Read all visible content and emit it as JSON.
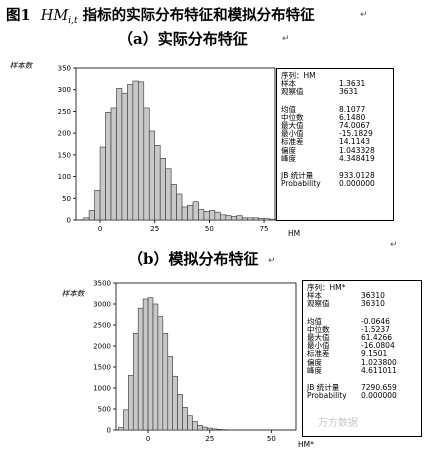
{
  "figure": {
    "title_prefix": "图1",
    "title_hm": "HM",
    "title_sub": "i,t",
    "title_rest": "指标的实际分布特征和模拟分布特征"
  },
  "watermark": "万方数据",
  "chart_data": [
    {
      "type": "bar",
      "subtitle": "（a）实际分布特征",
      "ylabel": "样本数",
      "xlabel": "HM",
      "x_ticks": [
        0,
        25,
        50,
        75
      ],
      "y_ticks": [
        0,
        50,
        100,
        150,
        200,
        250,
        300,
        350
      ],
      "ylim": [
        0,
        350
      ],
      "xlim": [
        -11,
        80
      ],
      "bin_width": 2.5,
      "bin_start": -7.5,
      "values": [
        5,
        22,
        68,
        168,
        248,
        258,
        303,
        292,
        312,
        320,
        318,
        258,
        205,
        172,
        142,
        118,
        82,
        60,
        30,
        34,
        42,
        24,
        20,
        22,
        18,
        12,
        10,
        8,
        10,
        5,
        5,
        5,
        4,
        3,
        2,
        2
      ],
      "stats": {
        "rows": [
          {
            "label": "序列：HM",
            "value": ""
          },
          {
            "label": "样本",
            "value": "1.3631"
          },
          {
            "label": "观察值",
            "value": "3631"
          },
          {
            "label": "",
            "value": ""
          },
          {
            "label": "均值",
            "value": "8.1077"
          },
          {
            "label": "中位数",
            "value": "6.1480"
          },
          {
            "label": "最大值",
            "value": "74.0067"
          },
          {
            "label": "最小值",
            "value": "-15.1829"
          },
          {
            "label": "标准差",
            "value": "14.1143"
          },
          {
            "label": "偏度",
            "value": "1.043328"
          },
          {
            "label": "峰度",
            "value": "4.348419"
          },
          {
            "label": "",
            "value": ""
          },
          {
            "label": "JB 统计量",
            "value": "933.0128"
          },
          {
            "label": "Probability",
            "value": "0.000000"
          }
        ]
      }
    },
    {
      "type": "bar",
      "subtitle": "（b）模拟分布特征",
      "ylabel": "样本数",
      "xlabel": "HM*",
      "x_ticks": [
        0,
        25,
        50
      ],
      "y_ticks": [
        0,
        500,
        1000,
        1500,
        2000,
        2500,
        3000,
        3500
      ],
      "ylim": [
        0,
        3500
      ],
      "xlim": [
        -13,
        60
      ],
      "bin_width": 2,
      "bin_start": -12,
      "values": [
        60,
        480,
        1300,
        2300,
        2900,
        3120,
        3150,
        3000,
        2700,
        2300,
        1750,
        1280,
        850,
        540,
        340,
        200,
        110,
        70,
        45,
        25,
        15,
        8,
        5,
        3,
        2,
        1
      ],
      "stats": {
        "rows": [
          {
            "label": "序列：HM*",
            "value": ""
          },
          {
            "label": "样本",
            "value": "36310"
          },
          {
            "label": "观察值",
            "value": "36310"
          },
          {
            "label": "",
            "value": ""
          },
          {
            "label": "均值",
            "value": "-0.0646"
          },
          {
            "label": "中位数",
            "value": "-1.5237"
          },
          {
            "label": "最大值",
            "value": "61.4266"
          },
          {
            "label": "最小值",
            "value": "-16.0804"
          },
          {
            "label": "标准差",
            "value": "9.1501"
          },
          {
            "label": "偏度",
            "value": "1.023800"
          },
          {
            "label": "峰度",
            "value": "4.611011"
          },
          {
            "label": "",
            "value": ""
          },
          {
            "label": "JB 统计量",
            "value": "7290.659"
          },
          {
            "label": "Probability",
            "value": "0.000000"
          }
        ]
      }
    }
  ]
}
